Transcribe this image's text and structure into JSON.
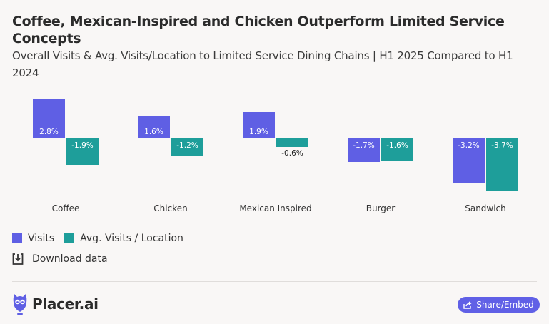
{
  "header": {
    "title": "Coffee, Mexican-Inspired and Chicken Outperform Limited Service Concepts",
    "subtitle": "Overall Visits & Avg. Visits/Location to Limited Service Dining Chains | H1 2025 Compared to H1 2024"
  },
  "colors": {
    "visits": "#5f5fe4",
    "avg": "#1e9e9a",
    "background": "#f9f7f6",
    "share_button": "#6060e6"
  },
  "legend": {
    "items": [
      {
        "label": "Visits"
      },
      {
        "label": "Avg. Visits / Location"
      }
    ]
  },
  "download": {
    "label": "Download data"
  },
  "footer": {
    "brand": "Placer.ai",
    "share_label": "Share/Embed"
  },
  "chart_data": {
    "type": "bar",
    "title": "Coffee, Mexican-Inspired and Chicken Outperform Limited Service Concepts",
    "subtitle": "Overall Visits & Avg. Visits/Location to Limited Service Dining Chains | H1 2025 Compared to H1 2024",
    "categories": [
      "Coffee",
      "Chicken",
      "Mexican Inspired",
      "Burger",
      "Sandwich"
    ],
    "series": [
      {
        "name": "Visits",
        "values": [
          2.8,
          1.6,
          1.9,
          -1.7,
          -3.2
        ],
        "labels": [
          "2.8%",
          "1.6%",
          "1.9%",
          "-1.7%",
          "-3.2%"
        ]
      },
      {
        "name": "Avg. Visits / Location",
        "values": [
          -1.9,
          -1.2,
          -0.6,
          -1.6,
          -3.7
        ],
        "labels": [
          "-1.9%",
          "-1.2%",
          "-0.6%",
          "-1.6%",
          "-3.7%"
        ]
      }
    ],
    "xlabel": "",
    "ylabel": "",
    "unit": "%",
    "grid": false,
    "legend_position": "bottom-left"
  }
}
